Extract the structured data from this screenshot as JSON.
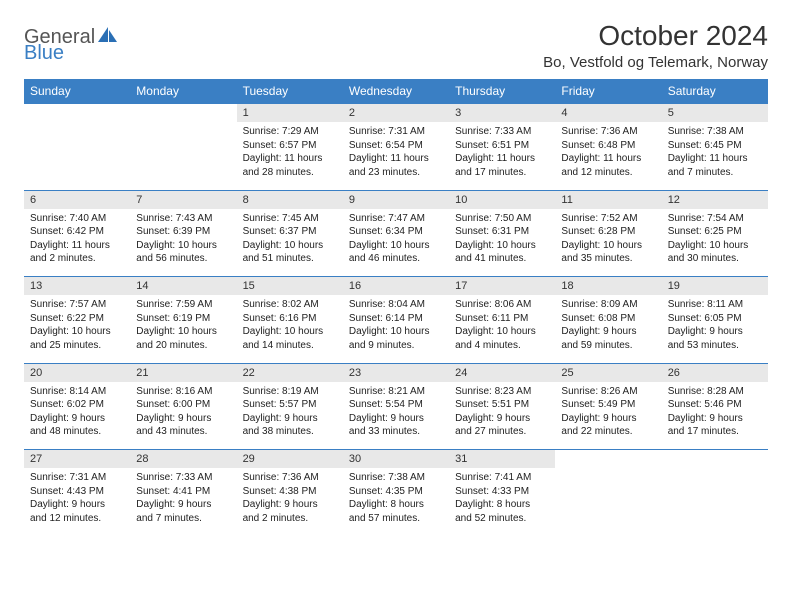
{
  "brand": {
    "part1": "General",
    "part2": "Blue",
    "icon_color": "#2a6fb5"
  },
  "title": "October 2024",
  "location": "Bo, Vestfold og Telemark, Norway",
  "colors": {
    "header_bg": "#3a7fc4",
    "header_text": "#ffffff",
    "daynum_bg": "#e8e8e8",
    "border": "#3a7fc4",
    "body_text": "#222222"
  },
  "day_headers": [
    "Sunday",
    "Monday",
    "Tuesday",
    "Wednesday",
    "Thursday",
    "Friday",
    "Saturday"
  ],
  "weeks": [
    [
      null,
      null,
      {
        "n": "1",
        "sr": "7:29 AM",
        "ss": "6:57 PM",
        "dl": "11 hours and 28 minutes."
      },
      {
        "n": "2",
        "sr": "7:31 AM",
        "ss": "6:54 PM",
        "dl": "11 hours and 23 minutes."
      },
      {
        "n": "3",
        "sr": "7:33 AM",
        "ss": "6:51 PM",
        "dl": "11 hours and 17 minutes."
      },
      {
        "n": "4",
        "sr": "7:36 AM",
        "ss": "6:48 PM",
        "dl": "11 hours and 12 minutes."
      },
      {
        "n": "5",
        "sr": "7:38 AM",
        "ss": "6:45 PM",
        "dl": "11 hours and 7 minutes."
      }
    ],
    [
      {
        "n": "6",
        "sr": "7:40 AM",
        "ss": "6:42 PM",
        "dl": "11 hours and 2 minutes."
      },
      {
        "n": "7",
        "sr": "7:43 AM",
        "ss": "6:39 PM",
        "dl": "10 hours and 56 minutes."
      },
      {
        "n": "8",
        "sr": "7:45 AM",
        "ss": "6:37 PM",
        "dl": "10 hours and 51 minutes."
      },
      {
        "n": "9",
        "sr": "7:47 AM",
        "ss": "6:34 PM",
        "dl": "10 hours and 46 minutes."
      },
      {
        "n": "10",
        "sr": "7:50 AM",
        "ss": "6:31 PM",
        "dl": "10 hours and 41 minutes."
      },
      {
        "n": "11",
        "sr": "7:52 AM",
        "ss": "6:28 PM",
        "dl": "10 hours and 35 minutes."
      },
      {
        "n": "12",
        "sr": "7:54 AM",
        "ss": "6:25 PM",
        "dl": "10 hours and 30 minutes."
      }
    ],
    [
      {
        "n": "13",
        "sr": "7:57 AM",
        "ss": "6:22 PM",
        "dl": "10 hours and 25 minutes."
      },
      {
        "n": "14",
        "sr": "7:59 AM",
        "ss": "6:19 PM",
        "dl": "10 hours and 20 minutes."
      },
      {
        "n": "15",
        "sr": "8:02 AM",
        "ss": "6:16 PM",
        "dl": "10 hours and 14 minutes."
      },
      {
        "n": "16",
        "sr": "8:04 AM",
        "ss": "6:14 PM",
        "dl": "10 hours and 9 minutes."
      },
      {
        "n": "17",
        "sr": "8:06 AM",
        "ss": "6:11 PM",
        "dl": "10 hours and 4 minutes."
      },
      {
        "n": "18",
        "sr": "8:09 AM",
        "ss": "6:08 PM",
        "dl": "9 hours and 59 minutes."
      },
      {
        "n": "19",
        "sr": "8:11 AM",
        "ss": "6:05 PM",
        "dl": "9 hours and 53 minutes."
      }
    ],
    [
      {
        "n": "20",
        "sr": "8:14 AM",
        "ss": "6:02 PM",
        "dl": "9 hours and 48 minutes."
      },
      {
        "n": "21",
        "sr": "8:16 AM",
        "ss": "6:00 PM",
        "dl": "9 hours and 43 minutes."
      },
      {
        "n": "22",
        "sr": "8:19 AM",
        "ss": "5:57 PM",
        "dl": "9 hours and 38 minutes."
      },
      {
        "n": "23",
        "sr": "8:21 AM",
        "ss": "5:54 PM",
        "dl": "9 hours and 33 minutes."
      },
      {
        "n": "24",
        "sr": "8:23 AM",
        "ss": "5:51 PM",
        "dl": "9 hours and 27 minutes."
      },
      {
        "n": "25",
        "sr": "8:26 AM",
        "ss": "5:49 PM",
        "dl": "9 hours and 22 minutes."
      },
      {
        "n": "26",
        "sr": "8:28 AM",
        "ss": "5:46 PM",
        "dl": "9 hours and 17 minutes."
      }
    ],
    [
      {
        "n": "27",
        "sr": "7:31 AM",
        "ss": "4:43 PM",
        "dl": "9 hours and 12 minutes."
      },
      {
        "n": "28",
        "sr": "7:33 AM",
        "ss": "4:41 PM",
        "dl": "9 hours and 7 minutes."
      },
      {
        "n": "29",
        "sr": "7:36 AM",
        "ss": "4:38 PM",
        "dl": "9 hours and 2 minutes."
      },
      {
        "n": "30",
        "sr": "7:38 AM",
        "ss": "4:35 PM",
        "dl": "8 hours and 57 minutes."
      },
      {
        "n": "31",
        "sr": "7:41 AM",
        "ss": "4:33 PM",
        "dl": "8 hours and 52 minutes."
      },
      null,
      null
    ]
  ],
  "labels": {
    "sunrise": "Sunrise:",
    "sunset": "Sunset:",
    "daylight": "Daylight:"
  }
}
